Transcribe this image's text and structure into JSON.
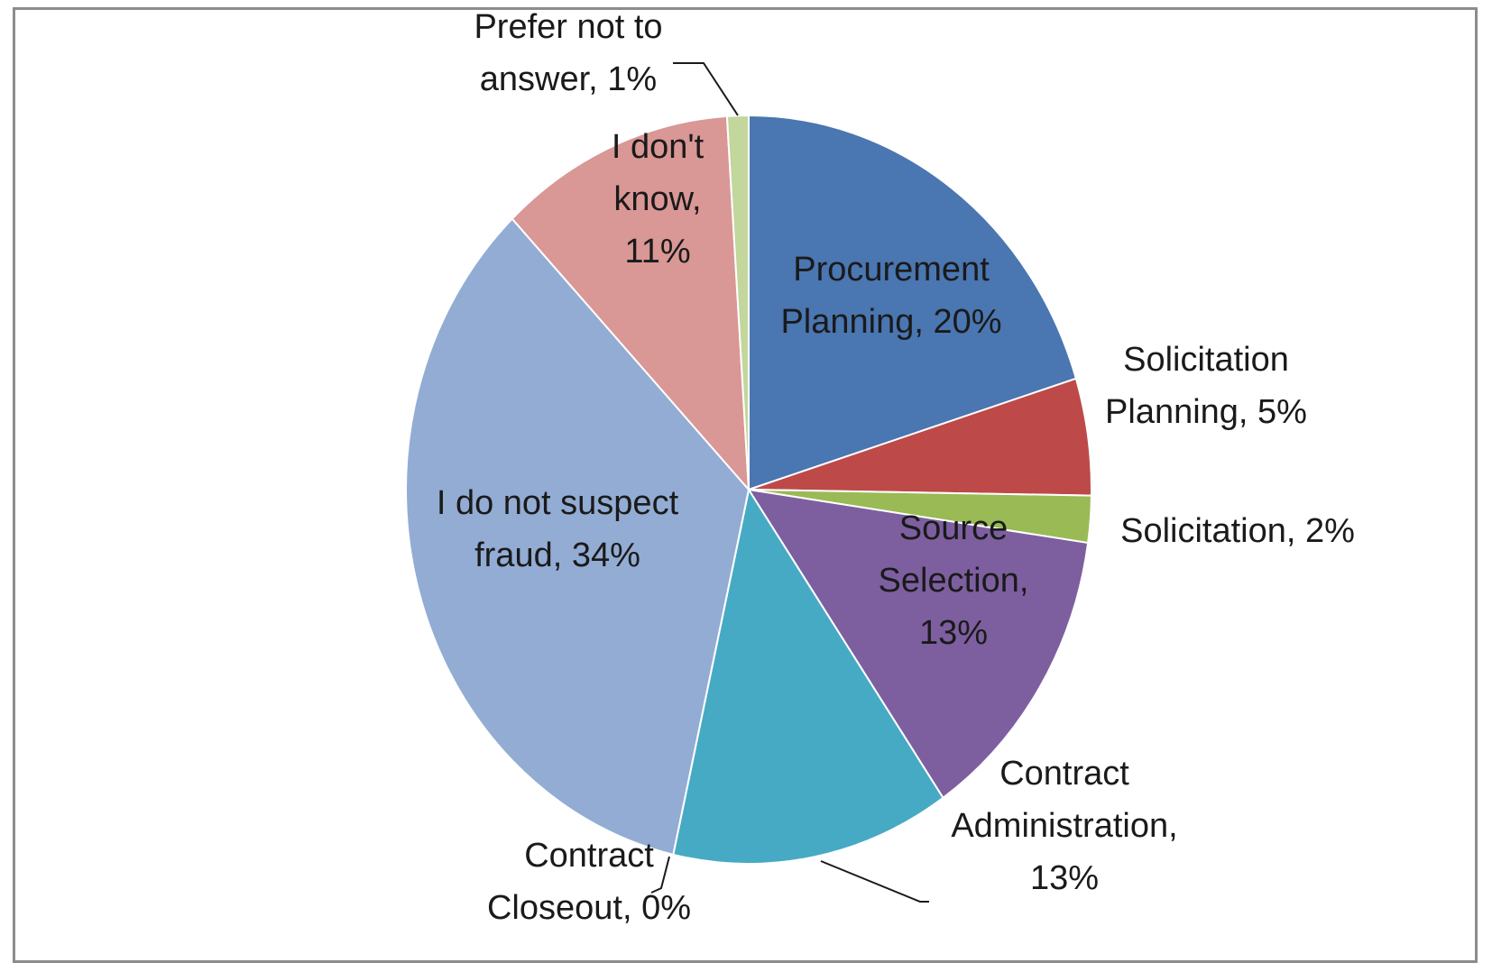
{
  "chart_data": {
    "type": "pie",
    "title": "",
    "slices": [
      {
        "label_lines": [
          "Procurement",
          "Planning, 20%"
        ],
        "label": "Procurement Planning",
        "value": 20,
        "color": "#4a76b1"
      },
      {
        "label_lines": [
          "Solicitation",
          "Planning, 5%"
        ],
        "label": "Solicitation Planning",
        "value": 5,
        "color": "#bd4a48"
      },
      {
        "label_lines": [
          "Solicitation, 2%"
        ],
        "label": "Solicitation",
        "value": 2,
        "color": "#99ba55"
      },
      {
        "label_lines": [
          "Source",
          "Selection,",
          "13%"
        ],
        "label": "Source Selection",
        "value": 13,
        "color": "#7d5fa0"
      },
      {
        "label_lines": [
          "Contract",
          "Administration,",
          "13%"
        ],
        "label": "Contract Administration",
        "value": 13,
        "color": "#46aac4"
      },
      {
        "label_lines": [
          "Contract",
          "Closeout, 0%"
        ],
        "label": "Contract Closeout",
        "value": 0,
        "color": "#f59d56"
      },
      {
        "label_lines": [
          "I do not suspect",
          "fraud, 34%"
        ],
        "label": "I do not suspect fraud",
        "value": 34,
        "color": "#93acd4"
      },
      {
        "label_lines": [
          "I don't",
          "know,",
          "11%"
        ],
        "label": "I don't know",
        "value": 11,
        "color": "#d99795"
      },
      {
        "label_lines": [
          "Prefer  not to",
          "answer, 1%"
        ],
        "label": "Prefer not to answer",
        "value": 1,
        "color": "#c3d69b"
      }
    ]
  }
}
